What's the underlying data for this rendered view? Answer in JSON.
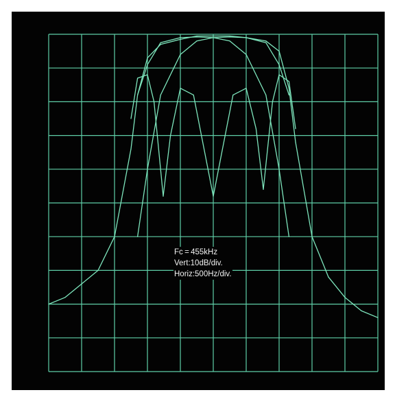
{
  "colors": {
    "background": "#ffffff",
    "screen": "#030303",
    "grid": "#5fcfa8",
    "trace": "#7ee6bd",
    "text": "#f2f2f2"
  },
  "annotation": {
    "line1": "Fc = 455kHz",
    "line2": "Vert:10dB/div.",
    "line3": "Horiz:500Hz/div."
  },
  "chart_data": {
    "type": "line",
    "title": "",
    "xlabel": "",
    "ylabel": "",
    "xlim": [
      -2500,
      2500
    ],
    "ylim": [
      -100,
      0
    ],
    "grid": true,
    "center_frequency_khz": 455,
    "vertical_scale": "10dB/div.",
    "horizontal_scale": "500Hz/div.",
    "series": [
      {
        "x": [
          -2500,
          -2250,
          -2000,
          -1750,
          -1500,
          -1250,
          -1150,
          -1000,
          -800,
          -500,
          -250,
          0,
          250,
          500,
          800,
          1000,
          1150,
          1250,
          1500,
          1750,
          2000,
          2250,
          2500
        ],
        "values": [
          -80,
          -78,
          -74,
          -70,
          -60,
          -34,
          -18,
          -7,
          -3,
          -1.5,
          -0.5,
          -0.5,
          -0.5,
          -1,
          -2,
          -5,
          -16,
          -32,
          -60,
          -72,
          -78,
          -82,
          -84
        ]
      },
      {
        "x": [
          -1150,
          -1000,
          -800,
          -500,
          -250,
          0,
          250,
          500,
          800,
          1000,
          1150
        ],
        "values": [
          -18,
          -9,
          -2.5,
          -1,
          -0.8,
          -1,
          -2,
          -6,
          -18,
          -40,
          -60
        ]
      },
      {
        "x": [
          -1150,
          -1000,
          -800,
          -500,
          -250,
          0,
          250,
          500,
          800,
          1000,
          1150
        ],
        "values": [
          -60,
          -40,
          -18,
          -6,
          -2,
          -1,
          -0.8,
          -1,
          -2.5,
          -9,
          -18
        ]
      },
      {
        "x": [
          -1250,
          -1150,
          -1000,
          -900,
          -760,
          -650,
          -500,
          -300,
          -100,
          0,
          100,
          300,
          500,
          650,
          760,
          900,
          1000,
          1150,
          1250
        ],
        "values": [
          -25,
          -13,
          -12,
          -20,
          -48,
          -30,
          -16,
          -18,
          -38,
          -48,
          -38,
          -18,
          -16,
          -28,
          -46,
          -20,
          -12,
          -14,
          -28
        ]
      }
    ]
  }
}
